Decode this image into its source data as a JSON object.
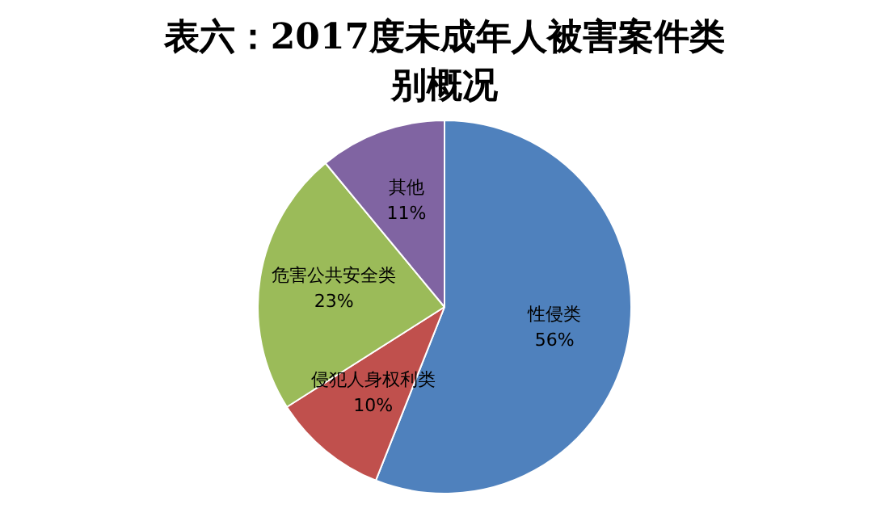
{
  "chart_data": {
    "type": "pie",
    "title": "表六：2017度未成年人被害案件类别概况",
    "categories": [
      "性侵类",
      "侵犯人身权利类",
      "危害公共安全类",
      "其他"
    ],
    "values": [
      56,
      10,
      23,
      11
    ],
    "colors": [
      "#4f81bd",
      "#c0504d",
      "#9bbb59",
      "#8064a2"
    ],
    "value_labels": [
      "56%",
      "10%",
      "23%",
      "11%"
    ],
    "legend": false
  }
}
